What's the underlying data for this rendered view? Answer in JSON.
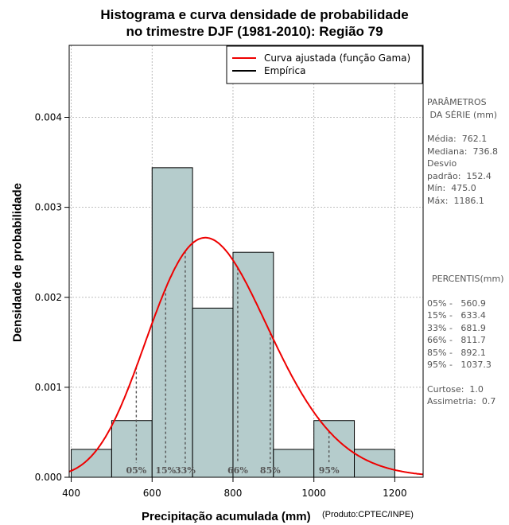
{
  "chart_data": {
    "type": "histogram",
    "title_line1": "Histograma e curva densidade de probabilidade",
    "title_line2": "no trimestre DJF (1981-2010): Região 79",
    "xlabel": "Precipitação acumulada (mm)",
    "ylabel": "Densidade de probabilidade",
    "credit": "(Produto:CPTEC/INPE)",
    "xlim": [
      395,
      1270
    ],
    "ylim": [
      0,
      0.0048
    ],
    "x_ticks": [
      400,
      600,
      800,
      1000,
      1200
    ],
    "x_tick_labels": [
      "400",
      "600",
      "800",
      "1000",
      "1200"
    ],
    "y_ticks": [
      0,
      0.001,
      0.002,
      0.003,
      0.004
    ],
    "y_tick_labels": [
      "0.000",
      "0.001",
      "0.002",
      "0.003",
      "0.004"
    ],
    "grid": true,
    "bins": [
      {
        "start": 400,
        "end": 500,
        "density": 0.00031
      },
      {
        "start": 500,
        "end": 600,
        "density": 0.00063
      },
      {
        "start": 600,
        "end": 700,
        "density": 0.00344
      },
      {
        "start": 700,
        "end": 800,
        "density": 0.00188
      },
      {
        "start": 800,
        "end": 900,
        "density": 0.0025
      },
      {
        "start": 900,
        "end": 1000,
        "density": 0.00031
      },
      {
        "start": 1000,
        "end": 1100,
        "density": 0.00063
      },
      {
        "start": 1100,
        "end": 1200,
        "density": 0.00031
      }
    ],
    "bar_color": "#b5cccc",
    "curve_color": "#ee0000",
    "gamma": {
      "mean": 762.1,
      "sd": 152.4
    },
    "percentile_lines": [
      {
        "label": "05%",
        "value": 560.9
      },
      {
        "label": "15%",
        "value": 633.4
      },
      {
        "label": "33%",
        "value": 681.9
      },
      {
        "label": "66%",
        "value": 811.7
      },
      {
        "label": "85%",
        "value": 892.1
      },
      {
        "label": "95%",
        "value": 1037.3
      }
    ],
    "legend": {
      "position": "top-right",
      "entries": [
        {
          "label": "Curva ajustada (função Gama)",
          "color": "#ee0000"
        },
        {
          "label": "Empírica",
          "color": "#000000"
        }
      ]
    }
  },
  "side_panel": {
    "params_header_1": "PARÂMETROS",
    "params_header_2": " DA SÉRIE (mm)",
    "mean": "Média:  762.1",
    "median": "Mediana:  736.8",
    "sd_1": "Desvio",
    "sd_2": "padrão:  152.4",
    "min": "Mín:  475.0",
    "max": "Máx:  1186.1",
    "pct_header": "PERCENTIS(mm)",
    "p05": "05% -   560.9",
    "p15": "15% -   633.4",
    "p33": "33% -   681.9",
    "p66": "66% -   811.7",
    "p85": "85% -   892.1",
    "p95": "95% -   1037.3",
    "kurtosis": "Curtose:  1.0",
    "skewness": "Assimetria:  0.7"
  }
}
